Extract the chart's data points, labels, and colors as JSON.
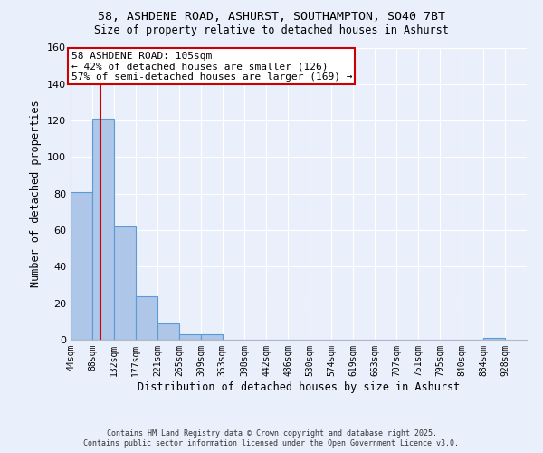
{
  "title1": "58, ASHDENE ROAD, ASHURST, SOUTHAMPTON, SO40 7BT",
  "title2": "Size of property relative to detached houses in Ashurst",
  "xlabel": "Distribution of detached houses by size in Ashurst",
  "ylabel": "Number of detached properties",
  "bin_edges": [
    44,
    88,
    132,
    177,
    221,
    265,
    309,
    353,
    398,
    442,
    486,
    530,
    574,
    619,
    663,
    707,
    751,
    795,
    840,
    884,
    928
  ],
  "bar_heights": [
    81,
    121,
    62,
    24,
    9,
    3,
    3,
    0,
    0,
    0,
    0,
    0,
    0,
    0,
    0,
    0,
    0,
    0,
    0,
    1
  ],
  "bar_color": "#aec6e8",
  "bar_edgecolor": "#5b9bd5",
  "bar_linewidth": 0.8,
  "red_line_x": 105,
  "red_line_color": "#cc0000",
  "ylim": [
    0,
    160
  ],
  "yticks": [
    0,
    20,
    40,
    60,
    80,
    100,
    120,
    140,
    160
  ],
  "annotation_text": "58 ASHDENE ROAD: 105sqm\n← 42% of detached houses are smaller (126)\n57% of semi-detached houses are larger (169) →",
  "annotation_box_color": "#ffffff",
  "annotation_box_edgecolor": "#cc0000",
  "footer1": "Contains HM Land Registry data © Crown copyright and database right 2025.",
  "footer2": "Contains public sector information licensed under the Open Government Licence v3.0.",
  "bg_color": "#eaf0fb",
  "plot_bg_color": "#eaf0fb"
}
